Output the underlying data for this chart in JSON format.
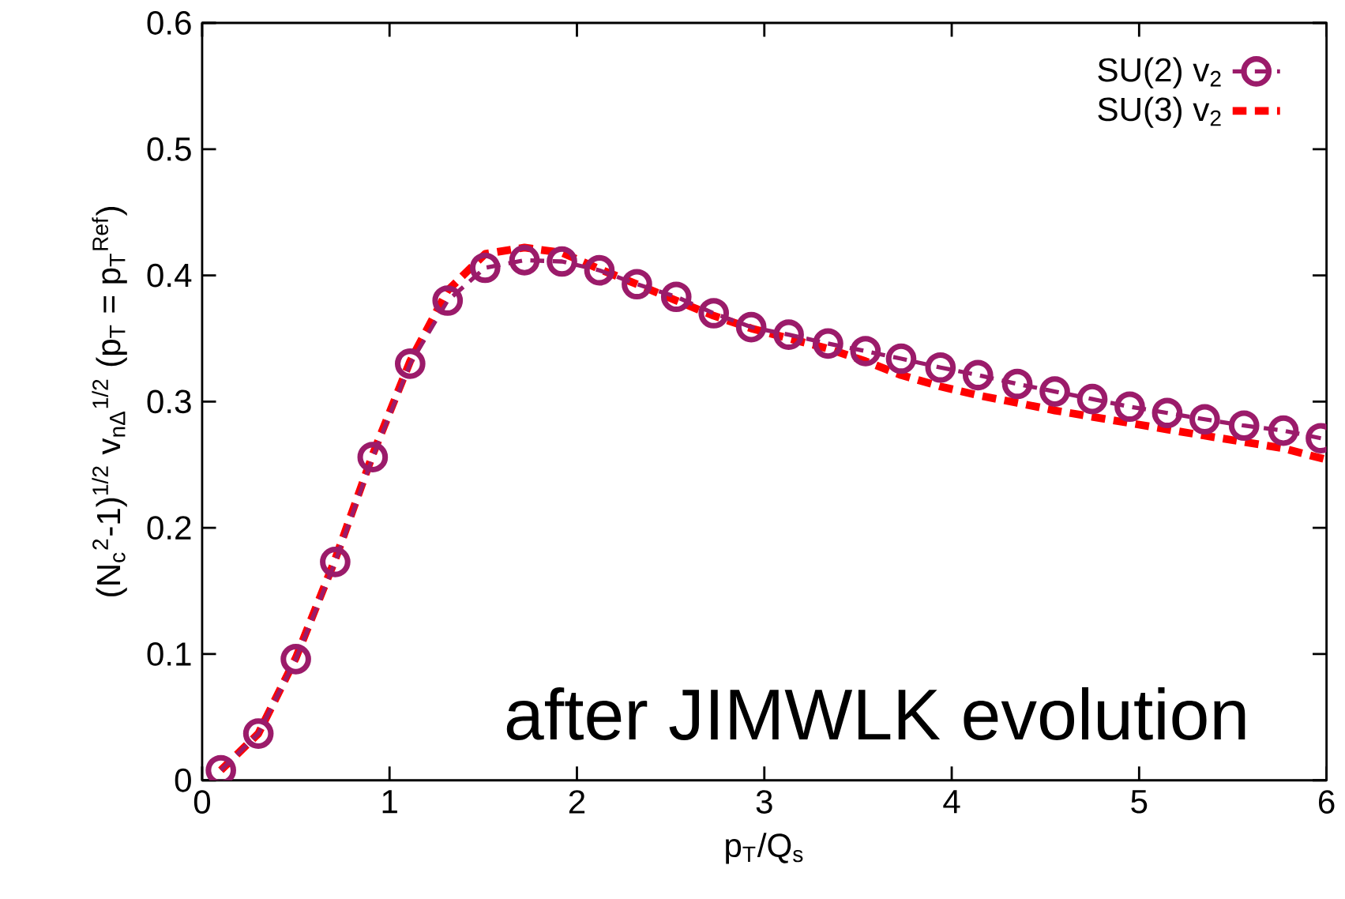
{
  "chart_data": {
    "type": "line",
    "xlabel": "p$_{T}$/Q$_{s}$",
    "ylabel": "(N$_{c}$$^{2}$-1)$^{1/2}$ v$_{nΔ}$$^{1/2}$ (p$_{T}$ = p$_{T}$$^{Ref}$)",
    "annotations": [
      "after JIMWLK evolution"
    ],
    "xlim": [
      0,
      6
    ],
    "ylim": [
      0,
      0.6
    ],
    "xticks": [
      0,
      1,
      2,
      3,
      4,
      5,
      6
    ],
    "yticks": [
      0,
      0.1,
      0.2,
      0.3,
      0.4,
      0.5,
      0.6
    ],
    "legend": "top right",
    "grid": false,
    "line_style": "dashed",
    "series": [
      {
        "name": "SU(2) v$_{2}$",
        "color": "#9b1b6a",
        "marker": "circle",
        "x": [
          0.1,
          0.3,
          0.5,
          0.71,
          0.91,
          1.11,
          1.31,
          1.51,
          1.72,
          1.92,
          2.12,
          2.32,
          2.53,
          2.73,
          2.93,
          3.13,
          3.34,
          3.54,
          3.73,
          3.94,
          4.14,
          4.35,
          4.55,
          4.75,
          4.95,
          5.15,
          5.35,
          5.56,
          5.77,
          5.97
        ],
        "values": [
          0.008,
          0.037,
          0.096,
          0.173,
          0.256,
          0.33,
          0.38,
          0.406,
          0.412,
          0.411,
          0.404,
          0.393,
          0.383,
          0.37,
          0.359,
          0.353,
          0.346,
          0.34,
          0.334,
          0.327,
          0.321,
          0.314,
          0.308,
          0.302,
          0.296,
          0.291,
          0.286,
          0.281,
          0.277,
          0.271
        ]
      },
      {
        "name": "SU(3) v$_{2}$",
        "color": "#ff0000",
        "marker": "none",
        "x": [
          0.1,
          0.3,
          0.5,
          0.71,
          0.91,
          1.11,
          1.31,
          1.51,
          1.72,
          1.92,
          2.12,
          2.32,
          2.53,
          2.73,
          2.93,
          3.13,
          3.34,
          3.54,
          3.73,
          3.94,
          4.14,
          4.35,
          4.55,
          4.75,
          4.95,
          5.15,
          5.35,
          5.56,
          5.77,
          6.0
        ],
        "values": [
          0.008,
          0.037,
          0.097,
          0.175,
          0.258,
          0.332,
          0.388,
          0.417,
          0.422,
          0.418,
          0.405,
          0.393,
          0.38,
          0.368,
          0.358,
          0.35,
          0.342,
          0.332,
          0.321,
          0.312,
          0.305,
          0.299,
          0.293,
          0.288,
          0.283,
          0.278,
          0.273,
          0.268,
          0.263,
          0.254
        ]
      }
    ]
  }
}
